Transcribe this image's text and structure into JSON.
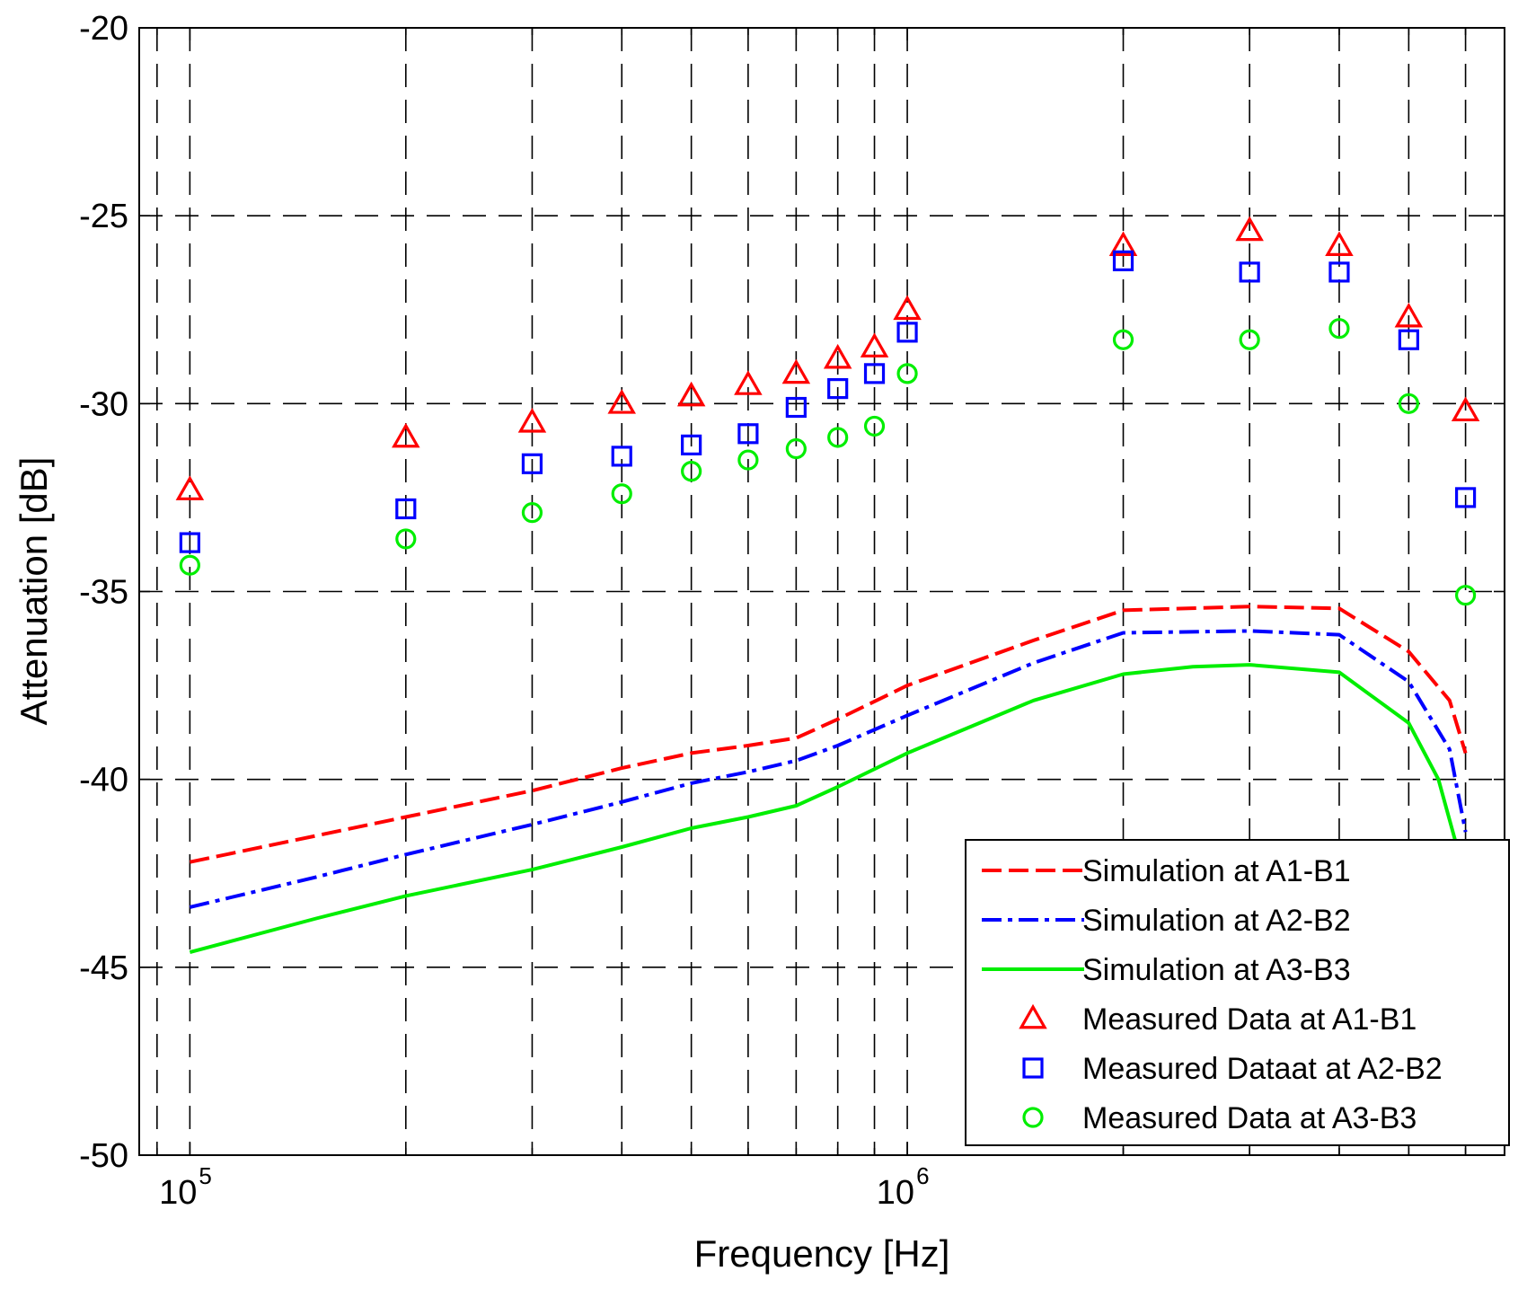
{
  "chart_data": {
    "type": "line",
    "title": "",
    "xlabel": "Frequency [Hz]",
    "ylabel": "Attenuation [dB]",
    "xscale": "log",
    "xlim": [
      85000,
      6800000
    ],
    "ylim": [
      -50,
      -20
    ],
    "grid": true,
    "legend_position": "bottom-right",
    "x_ticks": [
      {
        "value": 100000,
        "base": "10",
        "exp": "5"
      },
      {
        "value": 1000000,
        "base": "10",
        "exp": "6"
      }
    ],
    "y_ticks": [
      {
        "value": -20,
        "label": "-20"
      },
      {
        "value": -25,
        "label": "-25"
      },
      {
        "value": -30,
        "label": "-30"
      },
      {
        "value": -35,
        "label": "-35"
      },
      {
        "value": -40,
        "label": "-40"
      },
      {
        "value": -45,
        "label": "-45"
      },
      {
        "value": -50,
        "label": "-50"
      }
    ],
    "x_gridlines": [
      90000,
      100000,
      200000,
      300000,
      400000,
      500000,
      600000,
      700000,
      800000,
      900000,
      1000000,
      2000000,
      3000000,
      4000000,
      5000000,
      6000000
    ],
    "y_gridlines": [
      -25,
      -30,
      -35,
      -40,
      -45
    ],
    "lines": [
      {
        "name": "Simulation at A1-B1",
        "color": "#ff0000",
        "style": "dashed",
        "x": [
          100000,
          150000,
          200000,
          300000,
          400000,
          500000,
          600000,
          700000,
          800000,
          1000000,
          1500000,
          2000000,
          3000000,
          4000000,
          5000000,
          5700000,
          6000000
        ],
        "y": [
          -42.2,
          -41.5,
          -41.0,
          -40.3,
          -39.7,
          -39.3,
          -39.1,
          -38.9,
          -38.4,
          -37.5,
          -36.3,
          -35.5,
          -35.4,
          -35.45,
          -36.6,
          -37.9,
          -39.3
        ]
      },
      {
        "name": "Simulation at A2-B2",
        "color": "#0000ff",
        "style": "dashdot",
        "x": [
          100000,
          150000,
          200000,
          300000,
          400000,
          500000,
          600000,
          700000,
          800000,
          1000000,
          1500000,
          2000000,
          3000000,
          4000000,
          5000000,
          5700000,
          6000000
        ],
        "y": [
          -43.4,
          -42.6,
          -42.0,
          -41.2,
          -40.6,
          -40.1,
          -39.8,
          -39.5,
          -39.1,
          -38.3,
          -36.9,
          -36.1,
          -36.05,
          -36.15,
          -37.4,
          -39.2,
          -41.4
        ]
      },
      {
        "name": "Simulation at A3-B3",
        "color": "#00ee00",
        "style": "solid",
        "x": [
          100000,
          150000,
          200000,
          300000,
          400000,
          500000,
          600000,
          700000,
          800000,
          1000000,
          1500000,
          2000000,
          2500000,
          3000000,
          4000000,
          5000000,
          5500000,
          5800000
        ],
        "y": [
          -44.6,
          -43.7,
          -43.1,
          -42.4,
          -41.8,
          -41.3,
          -41.0,
          -40.7,
          -40.2,
          -39.3,
          -37.9,
          -37.2,
          -37.0,
          -36.95,
          -37.15,
          -38.5,
          -40.0,
          -41.6
        ]
      }
    ],
    "markers": [
      {
        "name": "Measured Data at A1-B1",
        "color": "#ff0000",
        "marker": "triangle",
        "x": [
          100000,
          200000,
          300000,
          400000,
          500000,
          600000,
          700000,
          800000,
          900000,
          1000000,
          2000000,
          3000000,
          4000000,
          5000000,
          6000000
        ],
        "y": [
          -32.3,
          -30.9,
          -30.5,
          -30.0,
          -29.8,
          -29.5,
          -29.2,
          -28.8,
          -28.5,
          -27.5,
          -25.8,
          -25.4,
          -25.8,
          -27.7,
          -30.2
        ]
      },
      {
        "name": "Measured Dataat at A2-B2",
        "color": "#0000ff",
        "marker": "square",
        "x": [
          100000,
          200000,
          300000,
          400000,
          500000,
          600000,
          700000,
          800000,
          900000,
          1000000,
          2000000,
          3000000,
          4000000,
          5000000,
          6000000
        ],
        "y": [
          -33.7,
          -32.8,
          -31.6,
          -31.4,
          -31.1,
          -30.8,
          -30.1,
          -29.6,
          -29.2,
          -28.1,
          -26.2,
          -26.5,
          -26.5,
          -28.3,
          -32.5
        ]
      },
      {
        "name": "Measured Data at A3-B3",
        "color": "#00ee00",
        "marker": "circle",
        "x": [
          100000,
          200000,
          300000,
          400000,
          500000,
          600000,
          700000,
          800000,
          900000,
          1000000,
          2000000,
          3000000,
          4000000,
          5000000,
          6000000
        ],
        "y": [
          -34.3,
          -33.6,
          -32.9,
          -32.4,
          -31.8,
          -31.5,
          -31.2,
          -30.9,
          -30.6,
          -29.2,
          -28.3,
          -28.3,
          -28.0,
          -30.0,
          -35.1
        ]
      }
    ],
    "legend": [
      {
        "label": "Simulation at A1-B1",
        "kind": "line",
        "style": "dashed",
        "color": "#ff0000"
      },
      {
        "label": "Simulation at A2-B2",
        "kind": "line",
        "style": "dashdot",
        "color": "#0000ff"
      },
      {
        "label": "Simulation at A3-B3",
        "kind": "line",
        "style": "solid",
        "color": "#00ee00"
      },
      {
        "label": "Measured Data at A1-B1",
        "kind": "marker",
        "marker": "triangle",
        "color": "#ff0000"
      },
      {
        "label": "Measured Dataat at A2-B2",
        "kind": "marker",
        "marker": "square",
        "color": "#0000ff"
      },
      {
        "label": "Measured Data at A3-B3",
        "kind": "marker",
        "marker": "circle",
        "color": "#00ee00"
      }
    ]
  }
}
